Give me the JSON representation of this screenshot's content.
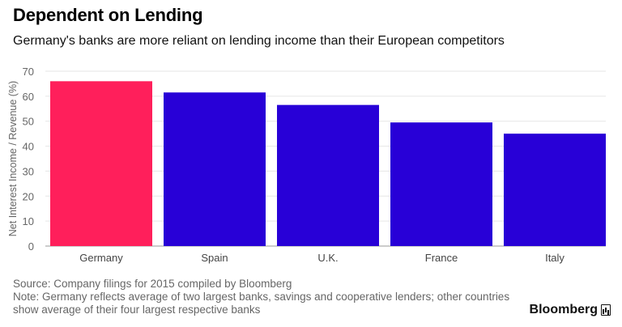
{
  "header": {
    "title": "Dependent on Lending",
    "subtitle": "Germany's banks are more reliant on lending income than their European competitors"
  },
  "footer": {
    "source": "Source: Company filings for 2015 compiled by Bloomberg",
    "note": "Note: Germany reflects average of two largest banks, savings and cooperative lenders; other countries show average of their four largest respective banks"
  },
  "brand": {
    "name": "Bloomberg",
    "icon": "bloomberg-chart-icon"
  },
  "colors": {
    "highlight": "#ff1f5b",
    "bar": "#2800d7",
    "grid": "#e6e6e6",
    "axis_text": "#666666"
  },
  "chart_data": {
    "type": "bar",
    "categories": [
      "Germany",
      "Spain",
      "U.K.",
      "France",
      "Italy"
    ],
    "values": [
      66,
      61.5,
      56.5,
      49.5,
      45
    ],
    "highlight_index": 0,
    "title": "Dependent on Lending",
    "subtitle": "Germany's banks are more reliant on lending income than their European competitors",
    "xlabel": "",
    "ylabel": "Net Interest Income / Revenue (%)",
    "ylim": [
      0,
      70
    ],
    "yticks": [
      0,
      10,
      20,
      30,
      40,
      50,
      60,
      70
    ],
    "grid": true
  }
}
